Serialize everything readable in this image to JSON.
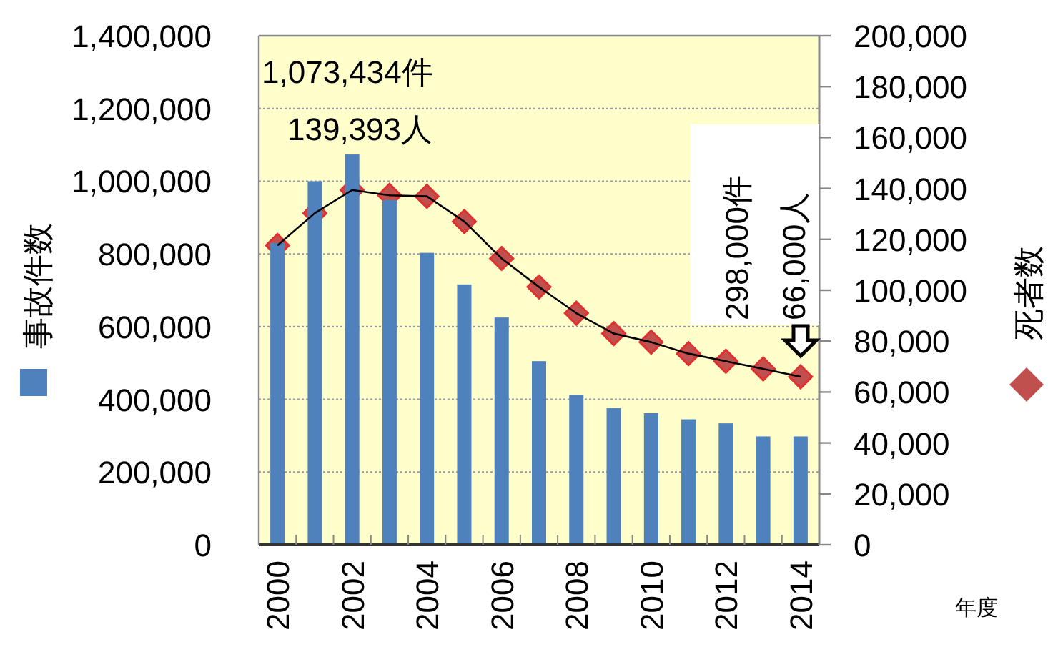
{
  "chart_data": {
    "type": "bar",
    "ylabel": "事故件数",
    "y2label": "死者数",
    "xlabel": "年度",
    "categories": [
      "2000",
      null,
      "2002",
      null,
      "2004",
      null,
      "2006",
      null,
      "2008",
      null,
      "2010",
      null,
      "2012",
      null,
      "2014"
    ],
    "series": [
      {
        "color": "#4f81bd",
        "values": [
          830000,
          1000000,
          1073434,
          948000,
          803000,
          716000,
          625000,
          505000,
          412000,
          376000,
          362000,
          345000,
          334000,
          298000,
          298000
        ]
      },
      {
        "type": "line",
        "axis": "y2",
        "color": "#c0504d",
        "marker": "diamond",
        "values": [
          117600,
          130300,
          139393,
          137300,
          136900,
          127000,
          112500,
          101300,
          91000,
          83000,
          79600,
          75100,
          72100,
          69100,
          66000
        ]
      }
    ],
    "ylim": [
      0,
      1400000
    ],
    "yticks": [
      {
        "value": 0,
        "label": "0"
      },
      {
        "value": 200000,
        "label": "200,000"
      },
      {
        "value": 400000,
        "label": "400,000"
      },
      {
        "value": 600000,
        "label": "600,000"
      },
      {
        "value": 800000,
        "label": "800,000"
      },
      {
        "value": 1000000,
        "label": "1,000,000"
      },
      {
        "value": 1200000,
        "label": "1,200,000"
      },
      {
        "value": 1400000,
        "label": "1,400,000"
      }
    ],
    "y2lim": [
      0,
      200000
    ],
    "y2ticks": [
      {
        "value": 0,
        "label": "0"
      },
      {
        "value": 20000,
        "label": "20,000"
      },
      {
        "value": 40000,
        "label": "40,000"
      },
      {
        "value": 60000,
        "label": "60,000"
      },
      {
        "value": 80000,
        "label": "80,000"
      },
      {
        "value": 100000,
        "label": "100,000"
      },
      {
        "value": 120000,
        "label": "120,000"
      },
      {
        "value": 140000,
        "label": "140,000"
      },
      {
        "value": 160000,
        "label": "160,000"
      },
      {
        "value": 180000,
        "label": "180,000"
      },
      {
        "value": 200000,
        "label": "200,000"
      }
    ],
    "grid": "y",
    "annotations": [
      "1,073,434件",
      "139,393人",
      "298,000件",
      "66,000人"
    ]
  }
}
